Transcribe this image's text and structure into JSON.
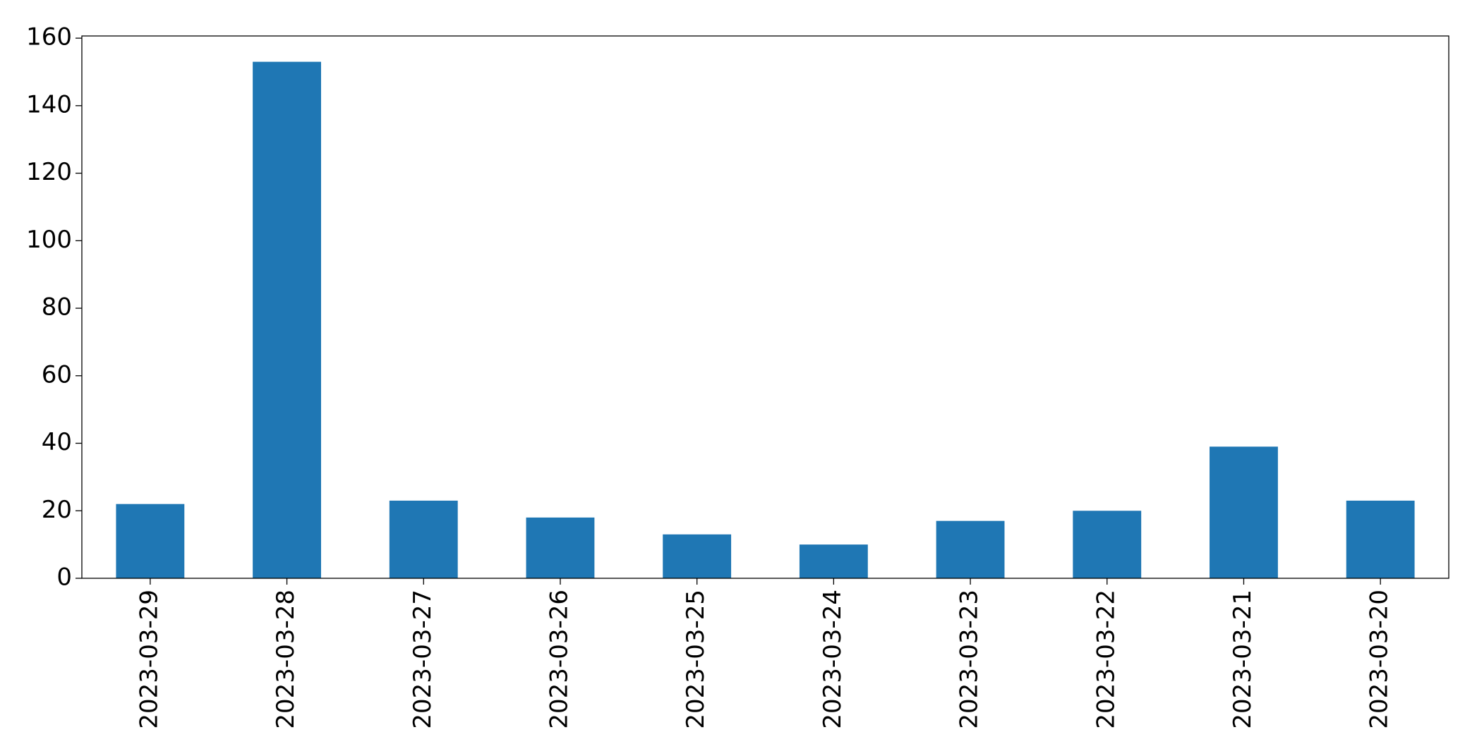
{
  "chart_data": {
    "type": "bar",
    "categories": [
      "2023-03-29",
      "2023-03-28",
      "2023-03-27",
      "2023-03-26",
      "2023-03-25",
      "2023-03-24",
      "2023-03-23",
      "2023-03-22",
      "2023-03-21",
      "2023-03-20"
    ],
    "values": [
      22,
      153,
      23,
      18,
      13,
      10,
      17,
      20,
      39,
      23
    ],
    "color": "#1f77b4",
    "ylim": [
      0,
      160.65
    ],
    "yticks": [
      0,
      20,
      40,
      60,
      80,
      100,
      120,
      140,
      160
    ],
    "grid": false
  }
}
